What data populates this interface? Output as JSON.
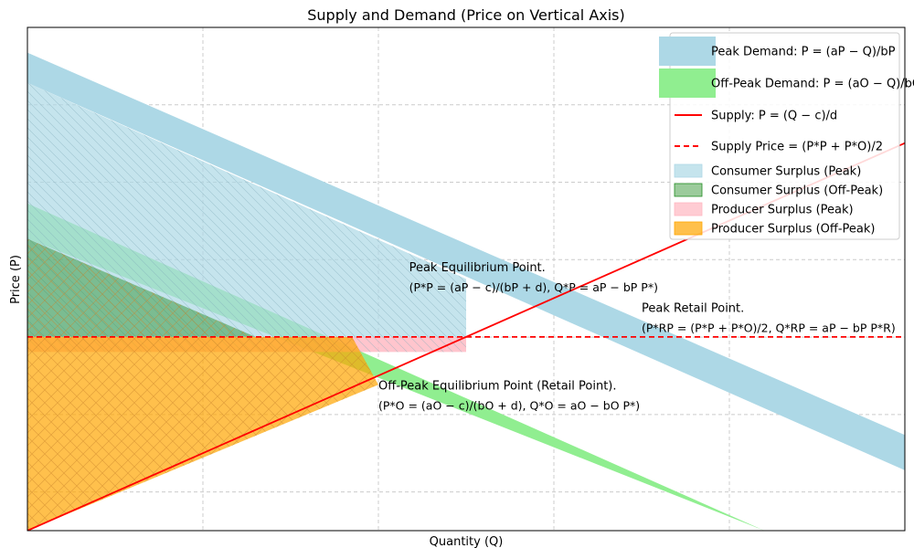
{
  "chart_data": {
    "type": "area",
    "title": "Supply and Demand (Price on Vertical Axis)",
    "xlabel": "Quantity (Q)",
    "ylabel": "Price (P)",
    "xlim": [
      0,
      100
    ],
    "ylim": [
      0,
      100
    ],
    "grid": true,
    "ticks_shown": false,
    "legend_placement": "top-right",
    "colors": {
      "peak_demand": "#add8e6",
      "offpeak_demand": "#90ee90",
      "supply": "#ff0000",
      "supply_price": "#ff0000",
      "cs_peak": "#add8e6",
      "cs_offpeak": "#228b22",
      "ps_peak": "#ffb6c1",
      "ps_offpeak": "#ffa500"
    },
    "bands": [
      {
        "key": "peak_demand",
        "upper": [
          [
            0,
            95
          ],
          [
            100,
            19
          ]
        ],
        "lower": [
          [
            0,
            89
          ],
          [
            100,
            12
          ]
        ]
      },
      {
        "key": "offpeak_demand",
        "upper": [
          [
            0,
            65
          ],
          [
            84,
            0
          ]
        ],
        "lower": [
          [
            0,
            58
          ],
          [
            84,
            0
          ],
          [
            72,
            0
          ]
        ]
      }
    ],
    "lines": [
      {
        "key": "supply",
        "points": [
          [
            0,
            0
          ],
          [
            100,
            77
          ]
        ],
        "dash": false
      },
      {
        "key": "supply_price",
        "points": [
          [
            0,
            38.5
          ],
          [
            100,
            38.5
          ]
        ],
        "dash": true
      }
    ],
    "areas": [
      {
        "key": "cs_peak",
        "points": [
          [
            0,
            89
          ],
          [
            50,
            50
          ],
          [
            50,
            38.5
          ],
          [
            0,
            38.5
          ]
        ],
        "hatch": "diag-back",
        "opacity": 0.7
      },
      {
        "key": "cs_offpeak",
        "points": [
          [
            0,
            58
          ],
          [
            26,
            38.5
          ],
          [
            0,
            38.5
          ]
        ],
        "hatch": "cross",
        "opacity": 0.45
      },
      {
        "key": "ps_peak",
        "points": [
          [
            0,
            38.5
          ],
          [
            50,
            38.5
          ],
          [
            50,
            35.5
          ],
          [
            0,
            35.5
          ]
        ],
        "hatch": "diag-back",
        "opacity": 0.8
      },
      {
        "key": "ps_offpeak",
        "points": [
          [
            0,
            38.5
          ],
          [
            37,
            38.5
          ],
          [
            40,
            29
          ],
          [
            0,
            0
          ]
        ],
        "hatch": "cross",
        "opacity": 0.7
      }
    ],
    "annotations": [
      {
        "key": "peak_eq",
        "line1": "Peak Equilibrium Point.",
        "line2": "(P*P = (aP − c)/(bP + d), Q*P = aP − bP P*)",
        "x": 43.5,
        "y": 51.5
      },
      {
        "key": "peak_retail",
        "line1": "Peak Retail Point.",
        "line2": "(P*RP = (P*P + P*O)/2, Q*RP = aP − bP P*R)",
        "x": 70,
        "y": 43.5
      },
      {
        "key": "offpeak_eq",
        "line1": "Off-Peak Equilibrium Point (Retail Point).",
        "line2": "(P*O = (aO − c)/(bO + d), Q*O = aO − bO P*)",
        "x": 40,
        "y": 28
      }
    ],
    "legend": [
      {
        "key": "peak_demand",
        "kind": "band",
        "label": "Peak Demand: P = (aP − Q)/bP"
      },
      {
        "key": "offpeak_demand",
        "kind": "band",
        "label": "Off-Peak Demand: P = (aO − Q)/bO"
      },
      {
        "key": "supply",
        "kind": "line",
        "label": "Supply: P = (Q − c)/d"
      },
      {
        "key": "supply_price",
        "kind": "dashed",
        "label": "Supply Price = (P*P + P*O)/2"
      },
      {
        "key": "cs_peak",
        "kind": "patch",
        "label": "Consumer Surplus (Peak)"
      },
      {
        "key": "cs_offpeak",
        "kind": "patch",
        "label": "Consumer Surplus (Off-Peak)"
      },
      {
        "key": "ps_peak",
        "kind": "patch",
        "label": "Producer Surplus (Peak)"
      },
      {
        "key": "ps_offpeak",
        "kind": "patch",
        "label": "Producer Surplus (Off-Peak)"
      }
    ]
  }
}
